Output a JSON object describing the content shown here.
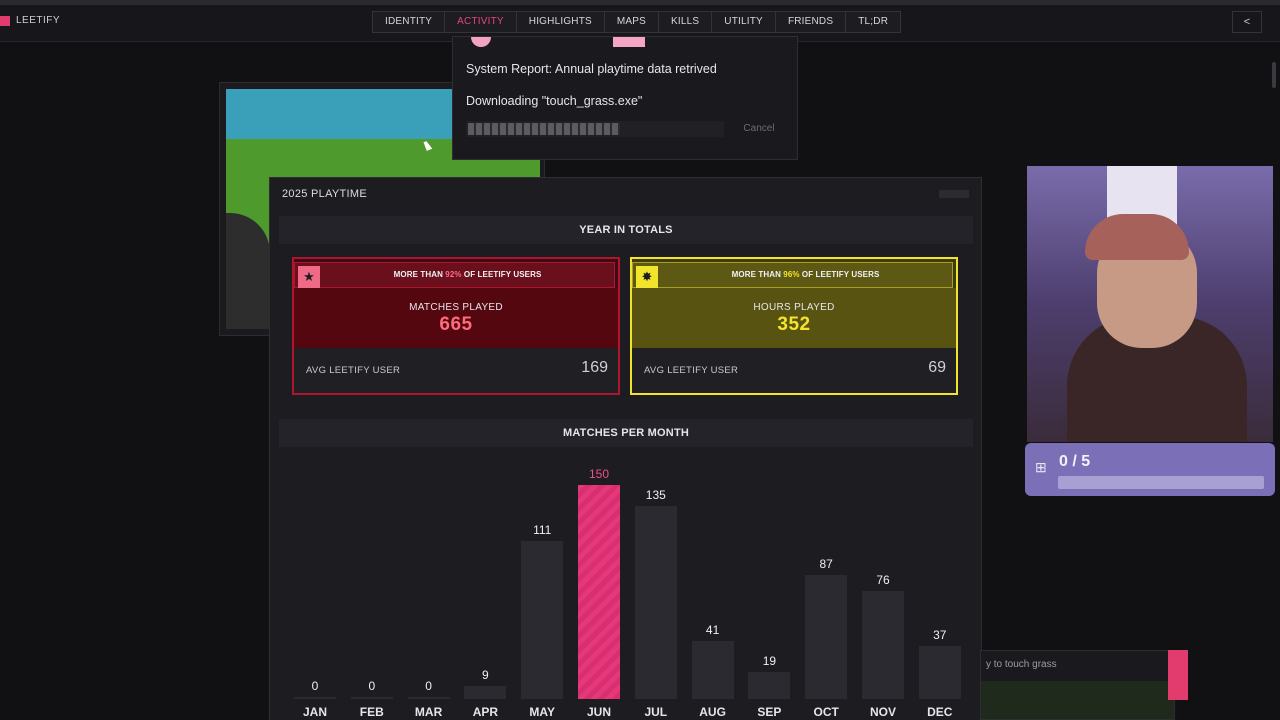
{
  "header": {
    "brand": "LEETIFY",
    "tabs": [
      "IDENTITY",
      "ACTIVITY",
      "HIGHLIGHTS",
      "MAPS",
      "KILLS",
      "UTILITY",
      "FRIENDS",
      "TL;DR"
    ],
    "active_tab": "ACTIVITY",
    "share_icon": "share-icon"
  },
  "download": {
    "report": "System Report: Annual playtime data retrived",
    "downloading": "Downloading \"touch_grass.exe\"",
    "progress": 0.6,
    "cancel": "Cancel"
  },
  "window": {
    "title": "2025 PLAYTIME",
    "year_in_totals": "YEAR IN TOTALS",
    "matches_per_month": "MATCHES PER MONTH"
  },
  "cards": [
    {
      "claim_prefix": "MORE THAN ",
      "claim_pct": "92%",
      "claim_suffix": " OF LEETIFY USERS",
      "label": "MATCHES PLAYED",
      "value": "665",
      "avg_label": "AVG LEETIFY USER",
      "avg_value": "169",
      "accent": "#b01530"
    },
    {
      "claim_prefix": "MORE THAN ",
      "claim_pct": "96%",
      "claim_suffix": " OF LEETIFY USERS",
      "label": "HOURS PLAYED",
      "value": "352",
      "avg_label": "AVG LEETIFY USER",
      "avg_value": "69",
      "accent": "#f2e42a"
    }
  ],
  "chart_data": {
    "type": "bar",
    "title": "MATCHES PER MONTH",
    "categories": [
      "JAN",
      "FEB",
      "MAR",
      "APR",
      "MAY",
      "JUN",
      "JUL",
      "AUG",
      "SEP",
      "OCT",
      "NOV",
      "DEC"
    ],
    "values": [
      0,
      0,
      0,
      9,
      111,
      150,
      135,
      41,
      19,
      87,
      76,
      37
    ],
    "highlight": "JUN",
    "highlight_color": "#e5377a",
    "bar_color": "#2a2a30"
  },
  "goal": {
    "text": "0 / 5",
    "progress": 0,
    "icon": "gift-icon"
  },
  "bg_notice": {
    "text": "y to touch grass"
  }
}
